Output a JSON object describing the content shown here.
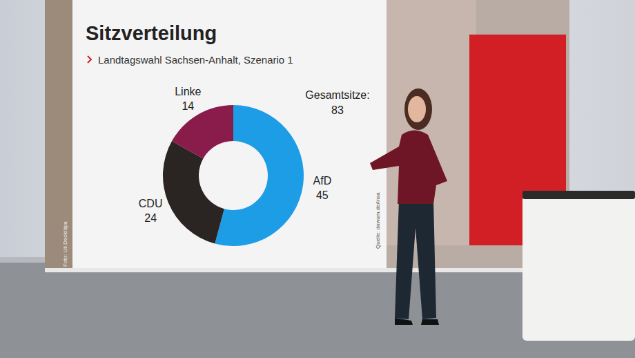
{
  "chart_data": {
    "type": "donut",
    "title": "Sitzverteilung",
    "subtitle": "Landtagswahl Sachsen-Anhalt, Szenario 1",
    "categories": [
      "AfD",
      "CDU",
      "Linke"
    ],
    "values": [
      45,
      24,
      14
    ],
    "colors": [
      "#1d9de6",
      "#2a2422",
      "#8a1c4b"
    ],
    "data_labels": true,
    "total_label": "Gesamtsitze:",
    "total": 83,
    "annotations": [
      "Quelle: dawum.de/Insa",
      "Foto: Uli Deck/dpa"
    ]
  }
}
